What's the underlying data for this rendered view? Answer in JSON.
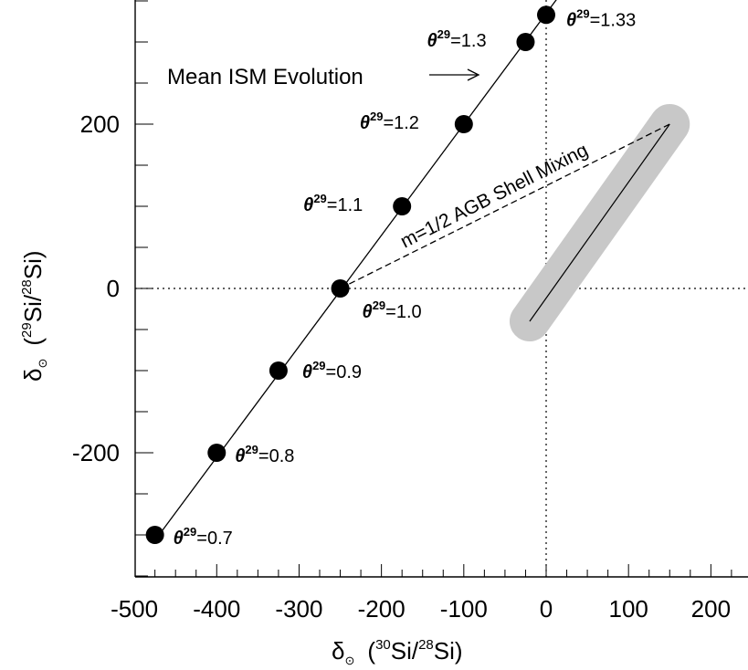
{
  "chart_data": {
    "type": "scatter",
    "xlabel_main": "δ",
    "xlabel_rest": "(",
    "xlabel_iso1": "30",
    "xlabel_el1": "Si/",
    "xlabel_iso2": "28",
    "xlabel_el2": "Si)",
    "ylabel_main": "δ",
    "ylabel_rest": "(",
    "ylabel_iso1": "29",
    "ylabel_el1": "Si/",
    "ylabel_iso2": "28",
    "ylabel_el2": "Si)",
    "sun_symbol": "⊙",
    "xlim": [
      -530,
      240
    ],
    "ylim": [
      -350,
      350
    ],
    "x_ticks": [
      -500,
      -400,
      -300,
      -200,
      -100,
      0,
      100,
      200
    ],
    "x_tick_labels": [
      "-500",
      "-400",
      "-300",
      "-200",
      "-100",
      "0",
      "100",
      "200"
    ],
    "y_ticks": [
      -200,
      0,
      200
    ],
    "y_tick_labels": [
      "-200",
      "0",
      "200"
    ],
    "reference_lines": {
      "x": 0,
      "y": 0,
      "style": "dotted"
    },
    "mean_ism_line": {
      "x": [
        -470,
        -230,
        15
      ],
      "y": [
        -300,
        0,
        355
      ]
    },
    "series": [
      {
        "name": "θ29 points",
        "points": [
          {
            "x": -475,
            "y": -300,
            "theta_symbol": "θ",
            "theta_sup": "29",
            "value": "=0.7"
          },
          {
            "x": -400,
            "y": -200,
            "theta_symbol": "θ",
            "theta_sup": "29",
            "value": "=0.8"
          },
          {
            "x": -325,
            "y": -100,
            "theta_symbol": "θ",
            "theta_sup": "29",
            "value": "=0.9"
          },
          {
            "x": -250,
            "y": 0,
            "theta_symbol": "θ",
            "theta_sup": "29",
            "value": "=1.0"
          },
          {
            "x": -175,
            "y": 100,
            "theta_symbol": "θ",
            "theta_sup": "29",
            "value": "=1.1"
          },
          {
            "x": -100,
            "y": 200,
            "theta_symbol": "θ",
            "theta_sup": "29",
            "value": "=1.2"
          },
          {
            "x": -25,
            "y": 300,
            "theta_symbol": "θ",
            "theta_sup": "29",
            "value": "=1.3"
          },
          {
            "x": 0,
            "y": 333,
            "theta_symbol": "θ",
            "theta_sup": "29",
            "value": "=1.33"
          }
        ]
      }
    ],
    "agb_mixing_line": {
      "x": [
        -250,
        150
      ],
      "y": [
        0,
        200
      ],
      "style": "dashed"
    },
    "mainstream_band": {
      "x": [
        -20,
        150
      ],
      "y": [
        -40,
        200
      ],
      "color": "#c8c8c8"
    },
    "annotations": {
      "mean_ism": "Mean ISM Evolution",
      "agb_shell": "m=1/2 AGB Shell Mixing"
    }
  }
}
